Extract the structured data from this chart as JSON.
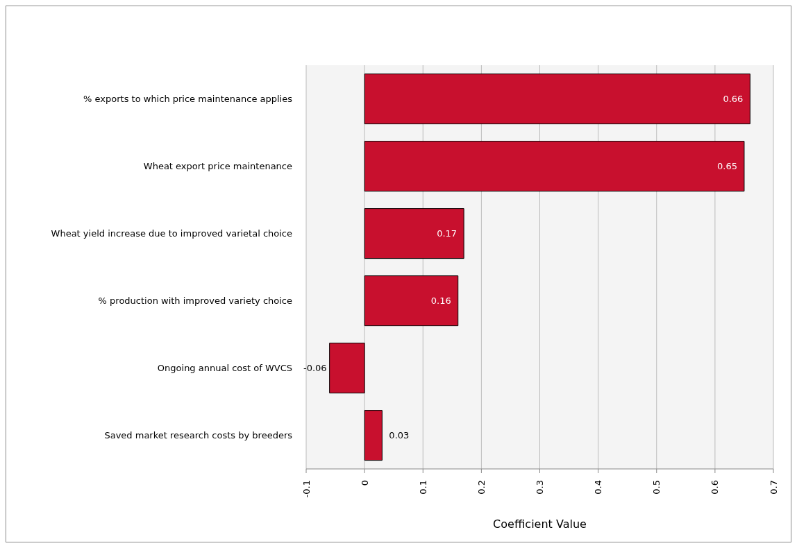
{
  "chart_data": {
    "type": "bar",
    "orientation": "horizontal",
    "xlabel": "Coefficient Value",
    "categories": [
      "% exports to which price maintenance applies",
      "Wheat export price maintenance",
      "Wheat yield increase due to improved varietal choice",
      "% production with improved variety choice",
      "Ongoing annual cost of WVCS",
      "Saved market research costs by breeders"
    ],
    "values": [
      0.66,
      0.65,
      0.17,
      0.16,
      -0.06,
      0.03
    ],
    "color": "#c8102e",
    "xlim": [
      -0.1,
      0.7
    ],
    "xticks": [
      -0.1,
      0,
      0.1,
      0.2,
      0.3,
      0.4,
      0.5,
      0.6,
      0.7
    ],
    "grid": "x",
    "data_labels": true,
    "legend": false
  }
}
